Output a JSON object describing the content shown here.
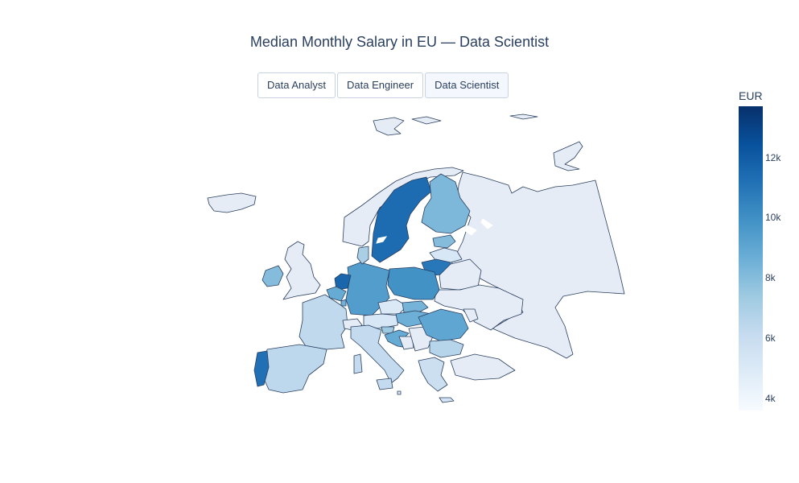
{
  "chart_data": {
    "type": "choropleth",
    "title": "Median Monthly Salary in EU — Data Scientist",
    "colorbar_title": "EUR",
    "colorscale": "Blues",
    "range": [
      3600,
      13700
    ],
    "colorbar_ticks": [
      {
        "value": 4000,
        "label": "4k"
      },
      {
        "value": 6000,
        "label": "6k"
      },
      {
        "value": 8000,
        "label": "8k"
      },
      {
        "value": 10000,
        "label": "10k"
      },
      {
        "value": 12000,
        "label": "12k"
      }
    ],
    "eu_values": {
      "Portugal": 11200,
      "Spain": 6400,
      "France": 6300,
      "Ireland": 8000,
      "Belgium": 8800,
      "Netherlands": 11600,
      "Luxembourg": 8500,
      "Germany": 9400,
      "Denmark": 7000,
      "Sweden": 11400,
      "Finland": 8200,
      "Estonia": 8000,
      "Latvia": 5200,
      "Lithuania": 10900,
      "Poland": 9900,
      "Czechia": 5000,
      "Slovakia": 8400,
      "Austria": 5200,
      "Hungary": 8600,
      "Slovenia": 7400,
      "Croatia": 8800,
      "Romania": 9000,
      "Bulgaria": 6600,
      "Greece": 5800,
      "Italy": 6200,
      "Malta": 5000,
      "Cyprus": 5400
    },
    "non_eu_fill": "#e5ecf6"
  },
  "buttons": [
    {
      "label": "Data Analyst",
      "active": false
    },
    {
      "label": "Data Engineer",
      "active": false
    },
    {
      "label": "Data Scientist",
      "active": true
    }
  ],
  "colors": {
    "border": "#2a3f5f",
    "title": "#2a3f5f",
    "land_other": "#e5ecf6"
  }
}
